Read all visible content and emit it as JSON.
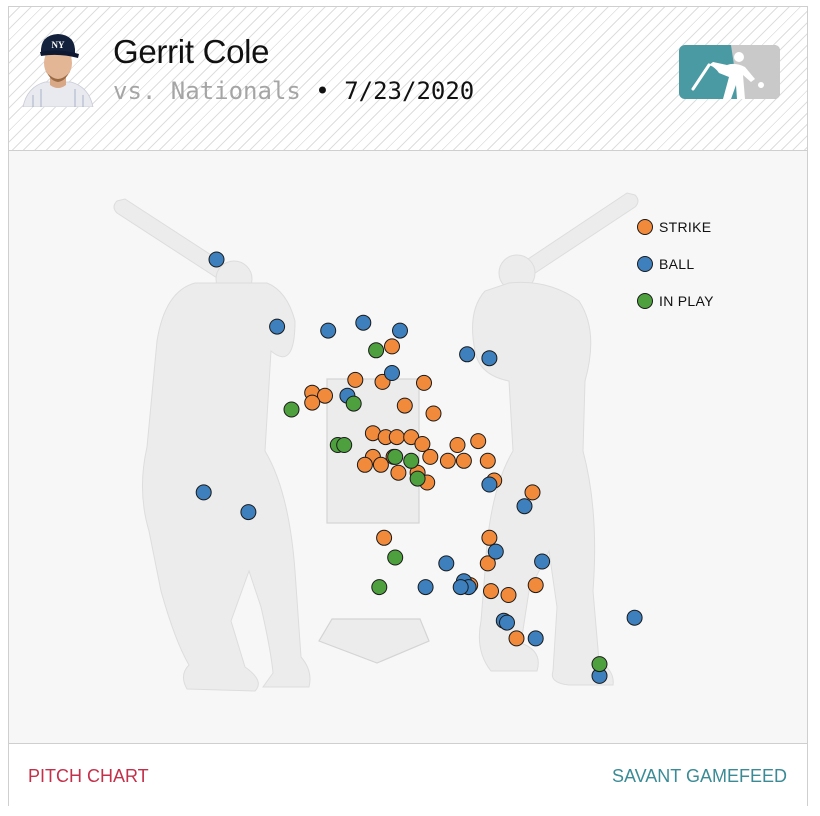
{
  "header": {
    "player_name": "Gerrit Cole",
    "opponent": "vs. Nationals",
    "separator": "•",
    "date": "7/23/2020",
    "team_logo": "yankees-cap-logo",
    "league_logo": "mlb-logo"
  },
  "footer": {
    "left_link": "PITCH CHART",
    "right_link": "SAVANT GAMEFEED"
  },
  "colors": {
    "strike": "#f28a3c",
    "ball": "#3d80bd",
    "in_play": "#4e9f3d",
    "accent_red": "#c42f49",
    "accent_teal": "#3a8b96"
  },
  "chart_data": {
    "type": "scatter",
    "title": "",
    "xlabel": "",
    "ylabel": "",
    "grid": false,
    "legend_position": "top-right",
    "legend": [
      {
        "key": "strike",
        "label": "STRIKE"
      },
      {
        "key": "ball",
        "label": "BALL"
      },
      {
        "key": "in_play",
        "label": "IN PLAY"
      }
    ],
    "x_range": [
      -2.5,
      2.5
    ],
    "y_range": [
      -0.5,
      5.5
    ],
    "series": [
      {
        "key": "strike",
        "points": [
          [
            -0.1,
            3.52
          ],
          [
            -0.33,
            3.18
          ],
          [
            -0.16,
            3.16
          ],
          [
            0.1,
            3.15
          ],
          [
            -0.6,
            3.05
          ],
          [
            -0.52,
            3.02
          ],
          [
            -0.6,
            2.95
          ],
          [
            -0.02,
            2.92
          ],
          [
            0.16,
            2.84
          ],
          [
            -0.22,
            2.64
          ],
          [
            -0.14,
            2.6
          ],
          [
            -0.07,
            2.6
          ],
          [
            0.02,
            2.6
          ],
          [
            0.09,
            2.53
          ],
          [
            0.44,
            2.56
          ],
          [
            0.31,
            2.52
          ],
          [
            -0.22,
            2.4
          ],
          [
            -0.09,
            2.4
          ],
          [
            0.14,
            2.4
          ],
          [
            0.25,
            2.36
          ],
          [
            0.35,
            2.36
          ],
          [
            0.5,
            2.36
          ],
          [
            -0.17,
            2.32
          ],
          [
            -0.27,
            2.32
          ],
          [
            -0.06,
            2.24
          ],
          [
            0.06,
            2.24
          ],
          [
            0.54,
            2.16
          ],
          [
            0.12,
            2.14
          ],
          [
            0.78,
            2.04
          ],
          [
            -0.15,
            1.58
          ],
          [
            0.51,
            1.58
          ],
          [
            0.5,
            1.32
          ],
          [
            0.39,
            1.1
          ],
          [
            0.52,
            1.04
          ],
          [
            0.63,
            1.0
          ],
          [
            0.8,
            1.1
          ],
          [
            0.68,
            0.56
          ]
        ]
      },
      {
        "key": "ball",
        "points": [
          [
            -1.2,
            4.4
          ],
          [
            -0.82,
            3.72
          ],
          [
            -0.28,
            3.76
          ],
          [
            -0.5,
            3.68
          ],
          [
            -0.05,
            3.68
          ],
          [
            0.37,
            3.44
          ],
          [
            0.51,
            3.4
          ],
          [
            -0.1,
            3.25
          ],
          [
            -0.38,
            3.02
          ],
          [
            -1.28,
            2.04
          ],
          [
            0.51,
            2.12
          ],
          [
            0.73,
            1.9
          ],
          [
            -1.0,
            1.84
          ],
          [
            0.55,
            1.44
          ],
          [
            0.24,
            1.32
          ],
          [
            0.84,
            1.34
          ],
          [
            0.35,
            1.14
          ],
          [
            0.38,
            1.08
          ],
          [
            0.11,
            1.08
          ],
          [
            0.33,
            1.08
          ],
          [
            0.6,
            0.74
          ],
          [
            0.62,
            0.72
          ],
          [
            0.8,
            0.56
          ],
          [
            1.42,
            0.77
          ],
          [
            1.2,
            0.18
          ]
        ]
      },
      {
        "key": "in_play",
        "points": [
          [
            -0.2,
            3.48
          ],
          [
            -0.73,
            2.88
          ],
          [
            -0.34,
            2.94
          ],
          [
            -0.44,
            2.52
          ],
          [
            -0.4,
            2.52
          ],
          [
            -0.08,
            2.4
          ],
          [
            0.02,
            2.36
          ],
          [
            0.06,
            2.18
          ],
          [
            -0.08,
            1.38
          ],
          [
            -0.18,
            1.08
          ],
          [
            1.2,
            0.3
          ]
        ]
      }
    ]
  }
}
